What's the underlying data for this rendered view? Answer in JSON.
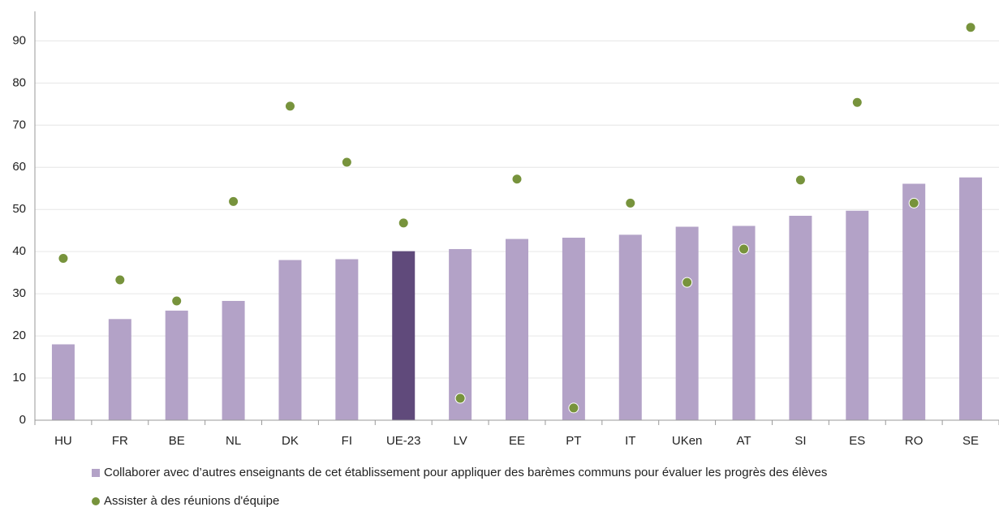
{
  "chart_data": {
    "type": "bar",
    "categories": [
      "HU",
      "FR",
      "BE",
      "NL",
      "DK",
      "FI",
      "UE-23",
      "LV",
      "EE",
      "PT",
      "IT",
      "UKen",
      "AT",
      "SI",
      "ES",
      "RO",
      "SE"
    ],
    "series": [
      {
        "name": "Collaborer avec d’autres enseignants de cet établissement pour appliquer des barèmes communs pour évaluer les progrès des élèves",
        "type": "bar",
        "color": "#b3a2c7",
        "colors": [
          "#b3a2c7",
          "#b3a2c7",
          "#b3a2c7",
          "#b3a2c7",
          "#b3a2c7",
          "#b3a2c7",
          "#604a7b",
          "#b3a2c7",
          "#b3a2c7",
          "#b3a2c7",
          "#b3a2c7",
          "#b3a2c7",
          "#b3a2c7",
          "#b3a2c7",
          "#b3a2c7",
          "#b3a2c7",
          "#b3a2c7"
        ],
        "values": [
          18,
          24,
          26,
          28.3,
          38,
          38.2,
          40.1,
          40.6,
          43,
          43.3,
          44,
          45.9,
          46.1,
          48.5,
          49.7,
          56.1,
          57.6
        ]
      },
      {
        "name": "Assister à des réunions d'équipe",
        "type": "scatter",
        "color": "#77933c",
        "values": [
          38.4,
          33.3,
          28.3,
          51.9,
          74.5,
          61.2,
          46.8,
          5.2,
          57.2,
          2.9,
          51.5,
          32.7,
          40.6,
          57,
          75.4,
          51.5,
          93.2
        ]
      }
    ],
    "ylim": [
      0,
      97
    ],
    "yticks": [
      0,
      10,
      20,
      30,
      40,
      50,
      60,
      70,
      80,
      90
    ],
    "grid": true
  }
}
